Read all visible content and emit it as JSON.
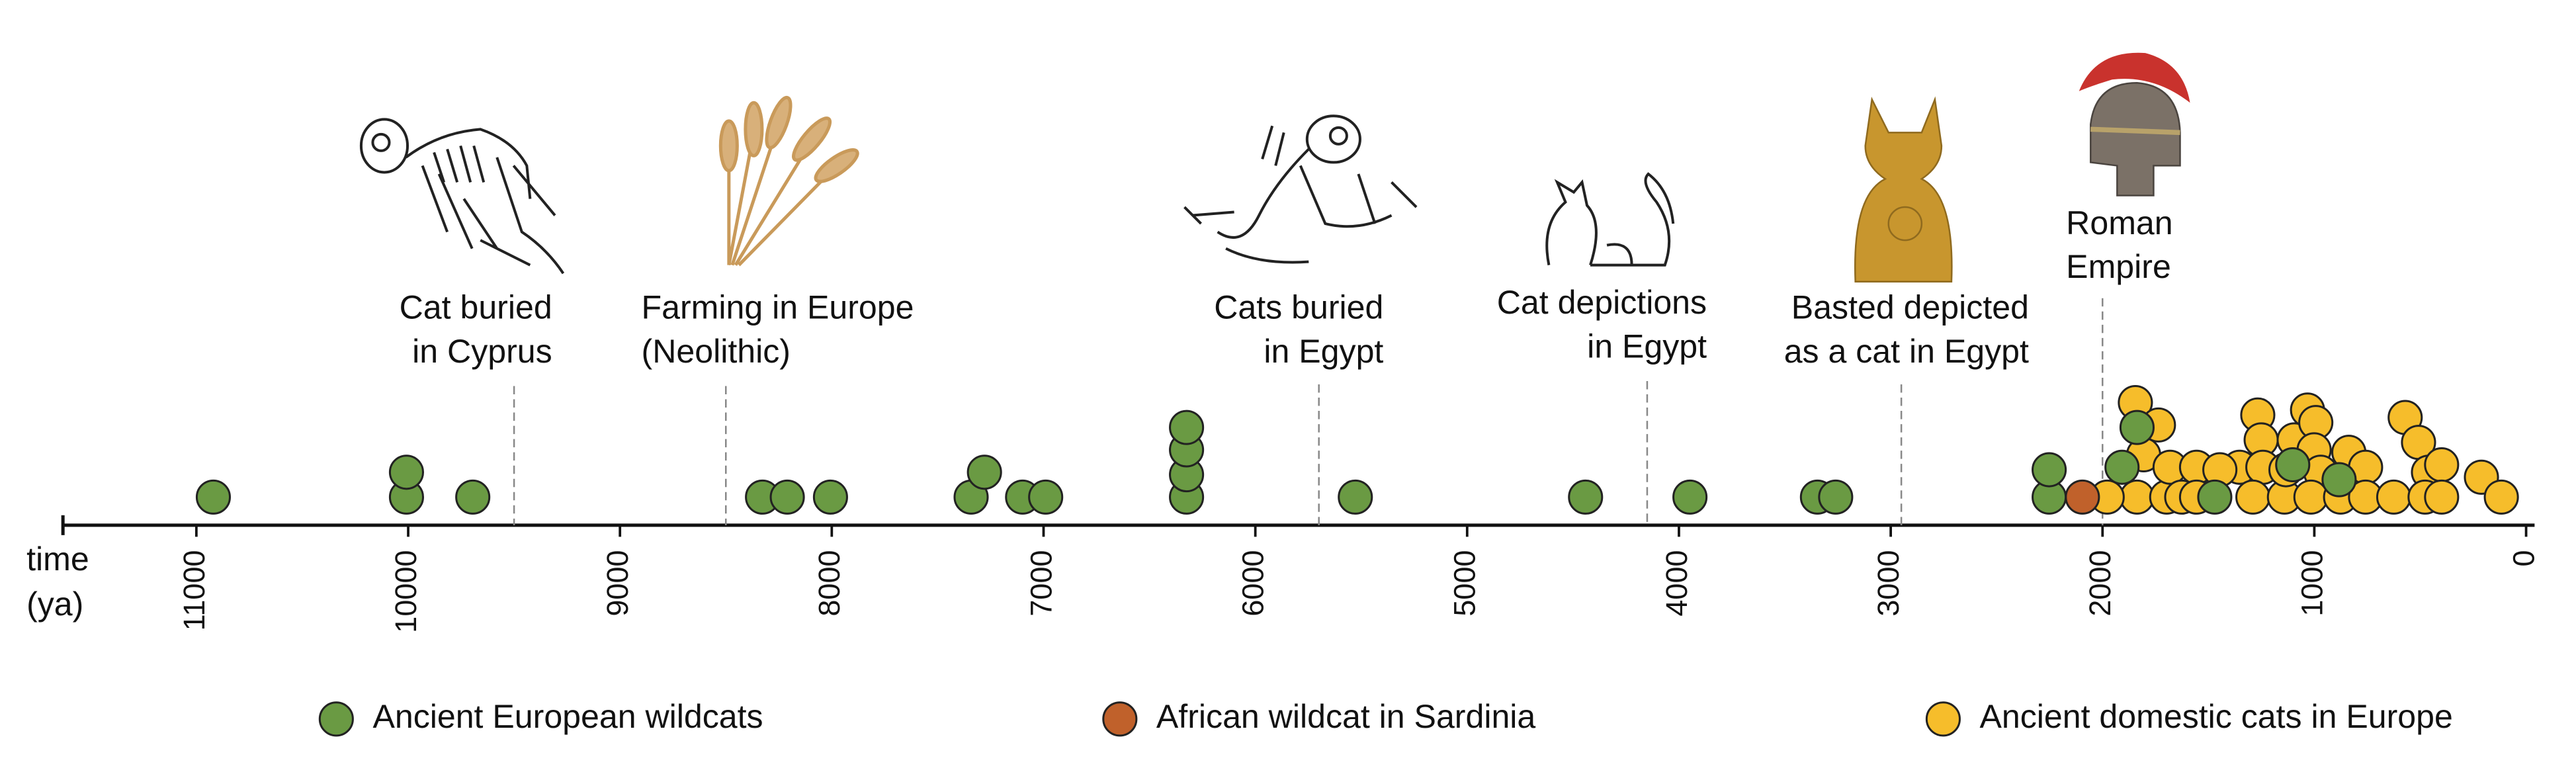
{
  "chart_data": {
    "type": "scatter",
    "xlabel": [
      "time",
      "(ya)"
    ],
    "xlim": [
      11630,
      -40
    ],
    "xticks": [
      11000,
      10000,
      9000,
      8000,
      7000,
      6000,
      5000,
      4000,
      3000,
      2000,
      1000,
      0
    ],
    "ylim": [
      -1.13,
      4.5
    ],
    "series": [
      {
        "name": "Ancient domestic cats in Europe",
        "color": "#f6bd2b",
        "x": [
          1845,
          1736,
          1806,
          1837,
          1978,
          1697,
          1681,
          1556,
          1626,
          1556,
          1353,
          1267,
          1251,
          1243,
          1290,
          1141,
          1095,
          1032,
          993,
          1001,
          970,
          1016,
          876,
          837,
          758,
          758,
          625,
          571,
          508,
          461,
          477,
          399,
          399,
          211,
          117,
          1446,
          1134
        ],
        "y": [
          3.8,
          2.9,
          1.7,
          0,
          0,
          0,
          1.2,
          1.2,
          0,
          0,
          1.2,
          3.3,
          2.3,
          1.2,
          0,
          0,
          2.3,
          3.5,
          3,
          1.9,
          1,
          0,
          0,
          1.8,
          1.2,
          0,
          0,
          3.2,
          2.2,
          1,
          0,
          1.3,
          0,
          0.8,
          0,
          1.1,
          1.1
        ]
      },
      {
        "name": "African wildcat in Sardinia",
        "color": "#c0612b",
        "x": [
          2095
        ],
        "y": [
          0
        ]
      },
      {
        "name": "Ancient European wildcats",
        "color": "#6a9a43",
        "x": [
          10920,
          10008,
          10008,
          9695,
          8327,
          8210,
          8006,
          7342,
          7279,
          7099,
          6990,
          6325,
          6325,
          6325,
          6325,
          5528,
          4441,
          3948,
          3346,
          3260,
          2252,
          2252,
          1908,
          1837,
          1470,
          1102,
          883
        ],
        "y": [
          0,
          0,
          1,
          0,
          0,
          0,
          0,
          0,
          1,
          0,
          0,
          0,
          0.9,
          1.9,
          2.8,
          0,
          0,
          0,
          0,
          0,
          0,
          1.1,
          1.2,
          2.8,
          0,
          1.3,
          0.7
        ]
      }
    ],
    "legend_order": [
      2,
      1,
      0
    ],
    "annotations": [
      {
        "x": 9500,
        "lines": [
          "Cat buried",
          "in Cyprus"
        ]
      },
      {
        "x": 8500,
        "lines": [
          "Farming in Europe",
          "(Neolithic)"
        ]
      },
      {
        "x": 5700,
        "lines": [
          "Cats buried",
          "in Egypt"
        ]
      },
      {
        "x": 4150,
        "lines": [
          "Cat depictions",
          "in Egypt"
        ]
      },
      {
        "x": 2950,
        "lines": [
          "Basted depicted",
          "as a cat in Egypt"
        ]
      },
      {
        "x": 2000,
        "lines": [
          "Roman",
          "Empire"
        ]
      }
    ]
  }
}
